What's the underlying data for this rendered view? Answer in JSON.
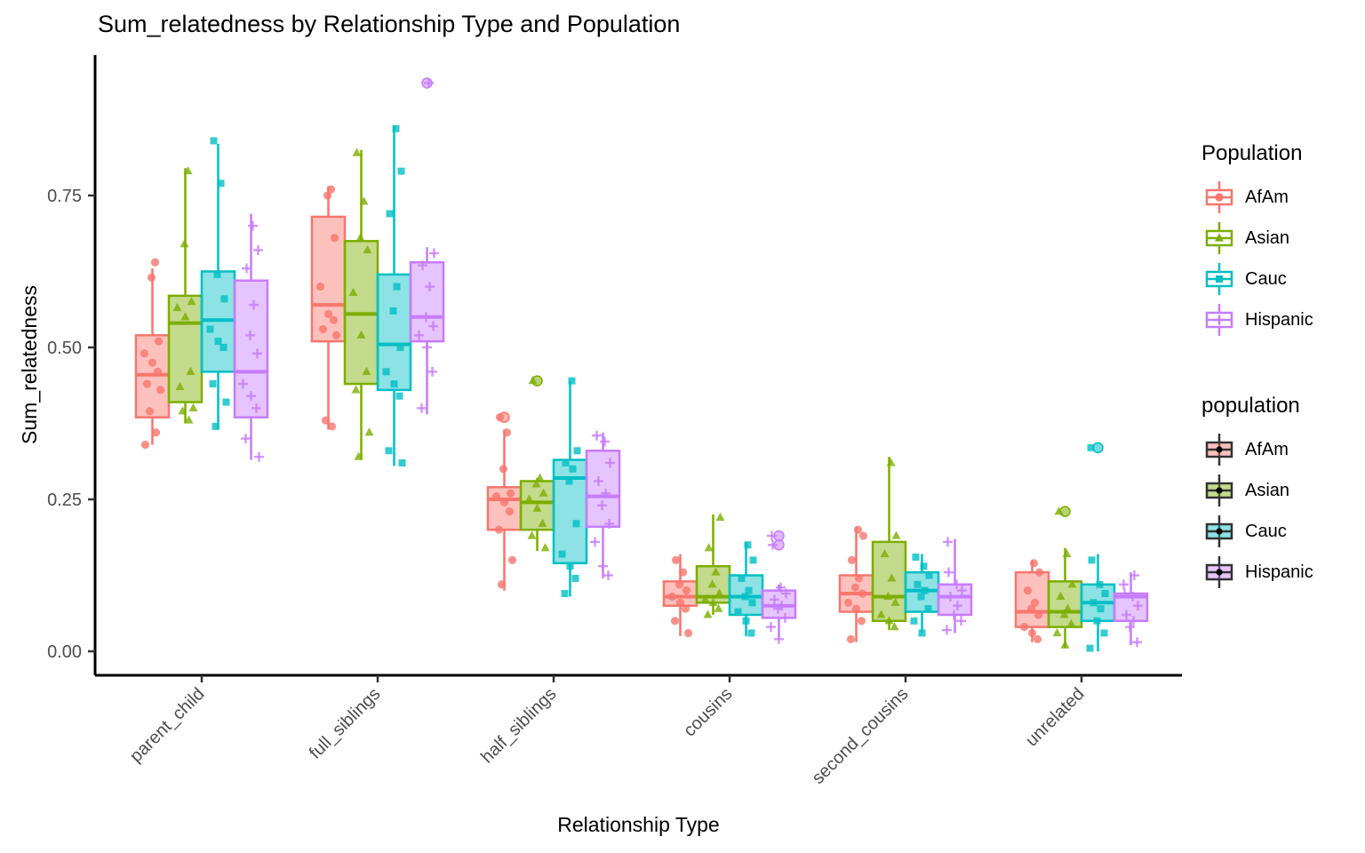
{
  "chart_data": {
    "type": "grouped_boxplot",
    "title": "Sum_relatedness by Relationship Type and Population",
    "xlabel": "Relationship Type",
    "ylabel": "Sum_relatedness",
    "y_tick_labels": [
      "0.00",
      "0.25",
      "0.50",
      "0.75"
    ],
    "y_tick_values": [
      0,
      0.25,
      0.5,
      0.75
    ],
    "ylim": [
      0,
      0.98
    ],
    "grid": "off",
    "legend_position": "right",
    "categories": [
      "parent_child",
      "full_siblings",
      "half_siblings",
      "cousins",
      "second_cousins",
      "unrelated"
    ],
    "populations": [
      {
        "name": "AfAm",
        "color": "#F8766D",
        "shape": "circle"
      },
      {
        "name": "Asian",
        "color": "#7CAE00",
        "shape": "triangle"
      },
      {
        "name": "Cauc",
        "color": "#00BFC4",
        "shape": "square"
      },
      {
        "name": "Hispanic",
        "color": "#C77CFF",
        "shape": "plus"
      }
    ],
    "groups": [
      {
        "category": "parent_child",
        "boxes": [
          {
            "population": "AfAm",
            "low": 0.34,
            "q1": 0.385,
            "median": 0.455,
            "q3": 0.52,
            "high": 0.63,
            "outliers": [],
            "points": [
              0.34,
              0.36,
              0.395,
              0.43,
              0.44,
              0.46,
              0.475,
              0.49,
              0.51,
              0.615,
              0.64
            ]
          },
          {
            "population": "Asian",
            "low": 0.375,
            "q1": 0.41,
            "median": 0.54,
            "q3": 0.585,
            "high": 0.795,
            "outliers": [],
            "points": [
              0.38,
              0.395,
              0.4,
              0.435,
              0.46,
              0.55,
              0.565,
              0.575,
              0.67,
              0.79
            ]
          },
          {
            "population": "Cauc",
            "low": 0.365,
            "q1": 0.46,
            "median": 0.545,
            "q3": 0.625,
            "high": 0.835,
            "outliers": [],
            "points": [
              0.37,
              0.41,
              0.44,
              0.5,
              0.51,
              0.53,
              0.58,
              0.62,
              0.77,
              0.84
            ]
          },
          {
            "population": "Hispanic",
            "low": 0.315,
            "q1": 0.385,
            "median": 0.46,
            "q3": 0.61,
            "high": 0.72,
            "outliers": [],
            "points": [
              0.32,
              0.35,
              0.4,
              0.42,
              0.44,
              0.49,
              0.52,
              0.57,
              0.63,
              0.66,
              0.7
            ]
          }
        ]
      },
      {
        "category": "full_siblings",
        "boxes": [
          {
            "population": "AfAm",
            "low": 0.365,
            "q1": 0.51,
            "median": 0.57,
            "q3": 0.715,
            "high": 0.765,
            "outliers": [],
            "points": [
              0.37,
              0.38,
              0.52,
              0.53,
              0.545,
              0.555,
              0.6,
              0.68,
              0.75,
              0.76
            ]
          },
          {
            "population": "Asian",
            "low": 0.315,
            "q1": 0.44,
            "median": 0.555,
            "q3": 0.675,
            "high": 0.825,
            "outliers": [],
            "points": [
              0.32,
              0.36,
              0.43,
              0.46,
              0.52,
              0.59,
              0.66,
              0.68,
              0.74,
              0.82
            ]
          },
          {
            "population": "Cauc",
            "low": 0.305,
            "q1": 0.43,
            "median": 0.505,
            "q3": 0.62,
            "high": 0.865,
            "outliers": [],
            "points": [
              0.31,
              0.33,
              0.42,
              0.44,
              0.46,
              0.5,
              0.56,
              0.6,
              0.72,
              0.79,
              0.86
            ]
          },
          {
            "population": "Hispanic",
            "low": 0.39,
            "q1": 0.51,
            "median": 0.55,
            "q3": 0.64,
            "high": 0.665,
            "outliers": [
              0.935
            ],
            "points": [
              0.4,
              0.46,
              0.5,
              0.52,
              0.535,
              0.55,
              0.6,
              0.635,
              0.655,
              0.935
            ]
          }
        ]
      },
      {
        "category": "half_siblings",
        "boxes": [
          {
            "population": "AfAm",
            "low": 0.1,
            "q1": 0.2,
            "median": 0.25,
            "q3": 0.27,
            "high": 0.365,
            "outliers": [
              0.385
            ],
            "points": [
              0.11,
              0.15,
              0.2,
              0.23,
              0.245,
              0.255,
              0.26,
              0.3,
              0.36,
              0.385
            ]
          },
          {
            "population": "Asian",
            "low": 0.165,
            "q1": 0.2,
            "median": 0.245,
            "q3": 0.28,
            "high": 0.285,
            "outliers": [
              0.445
            ],
            "points": [
              0.17,
              0.19,
              0.21,
              0.235,
              0.25,
              0.26,
              0.275,
              0.285,
              0.445
            ]
          },
          {
            "population": "Cauc",
            "low": 0.09,
            "q1": 0.145,
            "median": 0.285,
            "q3": 0.315,
            "high": 0.445,
            "outliers": [],
            "points": [
              0.095,
              0.12,
              0.14,
              0.16,
              0.21,
              0.28,
              0.3,
              0.31,
              0.33,
              0.445
            ]
          },
          {
            "population": "Hispanic",
            "low": 0.12,
            "q1": 0.205,
            "median": 0.255,
            "q3": 0.33,
            "high": 0.36,
            "outliers": [],
            "points": [
              0.125,
              0.14,
              0.18,
              0.21,
              0.24,
              0.26,
              0.28,
              0.31,
              0.345,
              0.355
            ]
          }
        ]
      },
      {
        "category": "cousins",
        "boxes": [
          {
            "population": "AfAm",
            "low": 0.025,
            "q1": 0.075,
            "median": 0.09,
            "q3": 0.115,
            "high": 0.16,
            "outliers": [],
            "points": [
              0.03,
              0.05,
              0.07,
              0.08,
              0.09,
              0.1,
              0.11,
              0.13,
              0.15
            ]
          },
          {
            "population": "Asian",
            "low": 0.06,
            "q1": 0.08,
            "median": 0.09,
            "q3": 0.14,
            "high": 0.225,
            "outliers": [],
            "points": [
              0.06,
              0.07,
              0.08,
              0.085,
              0.095,
              0.11,
              0.13,
              0.17,
              0.22
            ]
          },
          {
            "population": "Cauc",
            "low": 0.025,
            "q1": 0.06,
            "median": 0.09,
            "q3": 0.125,
            "high": 0.18,
            "outliers": [],
            "points": [
              0.03,
              0.05,
              0.065,
              0.08,
              0.09,
              0.1,
              0.12,
              0.15,
              0.175
            ]
          },
          {
            "population": "Hispanic",
            "low": 0.02,
            "q1": 0.055,
            "median": 0.075,
            "q3": 0.1,
            "high": 0.11,
            "outliers": [
              0.19,
              0.175
            ],
            "points": [
              0.02,
              0.04,
              0.055,
              0.07,
              0.075,
              0.085,
              0.095,
              0.105,
              0.175,
              0.19
            ]
          }
        ]
      },
      {
        "category": "second_cousins",
        "boxes": [
          {
            "population": "AfAm",
            "low": 0.015,
            "q1": 0.065,
            "median": 0.095,
            "q3": 0.125,
            "high": 0.205,
            "outliers": [],
            "points": [
              0.02,
              0.05,
              0.07,
              0.08,
              0.095,
              0.105,
              0.12,
              0.15,
              0.19,
              0.2
            ]
          },
          {
            "population": "Asian",
            "low": 0.035,
            "q1": 0.05,
            "median": 0.09,
            "q3": 0.18,
            "high": 0.32,
            "outliers": [],
            "points": [
              0.04,
              0.05,
              0.06,
              0.08,
              0.09,
              0.12,
              0.16,
              0.19,
              0.31
            ]
          },
          {
            "population": "Cauc",
            "low": 0.03,
            "q1": 0.065,
            "median": 0.1,
            "q3": 0.13,
            "high": 0.16,
            "outliers": [],
            "points": [
              0.03,
              0.05,
              0.07,
              0.09,
              0.1,
              0.11,
              0.125,
              0.14,
              0.155
            ]
          },
          {
            "population": "Hispanic",
            "low": 0.03,
            "q1": 0.06,
            "median": 0.09,
            "q3": 0.11,
            "high": 0.185,
            "outliers": [],
            "points": [
              0.035,
              0.05,
              0.06,
              0.075,
              0.09,
              0.1,
              0.11,
              0.13,
              0.18
            ]
          }
        ]
      },
      {
        "category": "unrelated",
        "boxes": [
          {
            "population": "AfAm",
            "low": 0.015,
            "q1": 0.04,
            "median": 0.065,
            "q3": 0.13,
            "high": 0.15,
            "outliers": [],
            "points": [
              0.02,
              0.03,
              0.04,
              0.06,
              0.07,
              0.08,
              0.1,
              0.13,
              0.145
            ]
          },
          {
            "population": "Asian",
            "low": 0.005,
            "q1": 0.04,
            "median": 0.065,
            "q3": 0.115,
            "high": 0.17,
            "outliers": [
              0.23
            ],
            "points": [
              0.01,
              0.03,
              0.045,
              0.06,
              0.07,
              0.09,
              0.11,
              0.16,
              0.23
            ]
          },
          {
            "population": "Cauc",
            "low": 0.0,
            "q1": 0.05,
            "median": 0.08,
            "q3": 0.11,
            "high": 0.16,
            "outliers": [
              0.335
            ],
            "points": [
              0.005,
              0.03,
              0.05,
              0.07,
              0.08,
              0.095,
              0.11,
              0.15,
              0.335
            ]
          },
          {
            "population": "Hispanic",
            "low": 0.01,
            "q1": 0.05,
            "median": 0.09,
            "q3": 0.095,
            "high": 0.13,
            "outliers": [],
            "points": [
              0.015,
              0.04,
              0.05,
              0.06,
              0.075,
              0.09,
              0.095,
              0.11,
              0.125
            ]
          }
        ]
      }
    ]
  },
  "legends": [
    {
      "title": "Population",
      "style": "outline",
      "entries": [
        {
          "label": "AfAm",
          "color": "#F8766D",
          "shape": "circle"
        },
        {
          "label": "Asian",
          "color": "#7CAE00",
          "shape": "triangle"
        },
        {
          "label": "Cauc",
          "color": "#00BFC4",
          "shape": "square"
        },
        {
          "label": "Hispanic",
          "color": "#C77CFF",
          "shape": "plus"
        }
      ]
    },
    {
      "title": "population",
      "style": "filled",
      "entries": [
        {
          "label": "AfAm",
          "color": "#F8766D",
          "shape": "dot"
        },
        {
          "label": "Asian",
          "color": "#7CAE00",
          "shape": "dot"
        },
        {
          "label": "Cauc",
          "color": "#00BFC4",
          "shape": "dot"
        },
        {
          "label": "Hispanic",
          "color": "#C77CFF",
          "shape": "dot"
        }
      ]
    }
  ]
}
